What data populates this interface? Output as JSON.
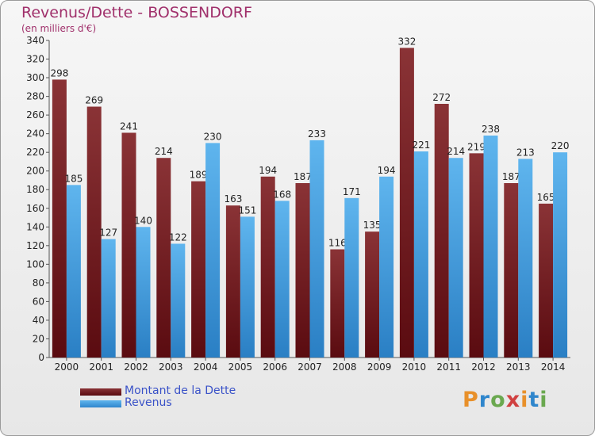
{
  "title": "Revenus/Dette - BOSSENDORF",
  "subtitle": "(en milliers d'€)",
  "logo_text": "Proxiti",
  "colors": {
    "dette": "#6e1c20",
    "revenus": "#4aa3e6",
    "title": "#a0306b",
    "legend_text": "#3a52c8"
  },
  "chart_data": {
    "type": "bar",
    "title": "Revenus/Dette - BOSSENDORF",
    "ylabel": "(en milliers d'€)",
    "xlabel": "",
    "ylim": [
      0,
      340
    ],
    "yticks": [
      0,
      20,
      40,
      60,
      80,
      100,
      120,
      140,
      160,
      180,
      200,
      220,
      240,
      260,
      280,
      300,
      320,
      340
    ],
    "grid": false,
    "legend_position": "bottom-left",
    "categories": [
      "2000",
      "2001",
      "2002",
      "2003",
      "2004",
      "2005",
      "2006",
      "2007",
      "2008",
      "2009",
      "2010",
      "2011",
      "2012",
      "2013",
      "2014"
    ],
    "series": [
      {
        "name": "Montant de la Dette",
        "values": [
          298,
          269,
          241,
          214,
          189,
          163,
          194,
          187,
          116,
          135,
          332,
          272,
          219,
          187,
          165
        ]
      },
      {
        "name": "Revenus",
        "values": [
          185,
          127,
          140,
          122,
          230,
          151,
          168,
          233,
          171,
          194,
          221,
          214,
          238,
          213,
          220
        ]
      }
    ]
  }
}
